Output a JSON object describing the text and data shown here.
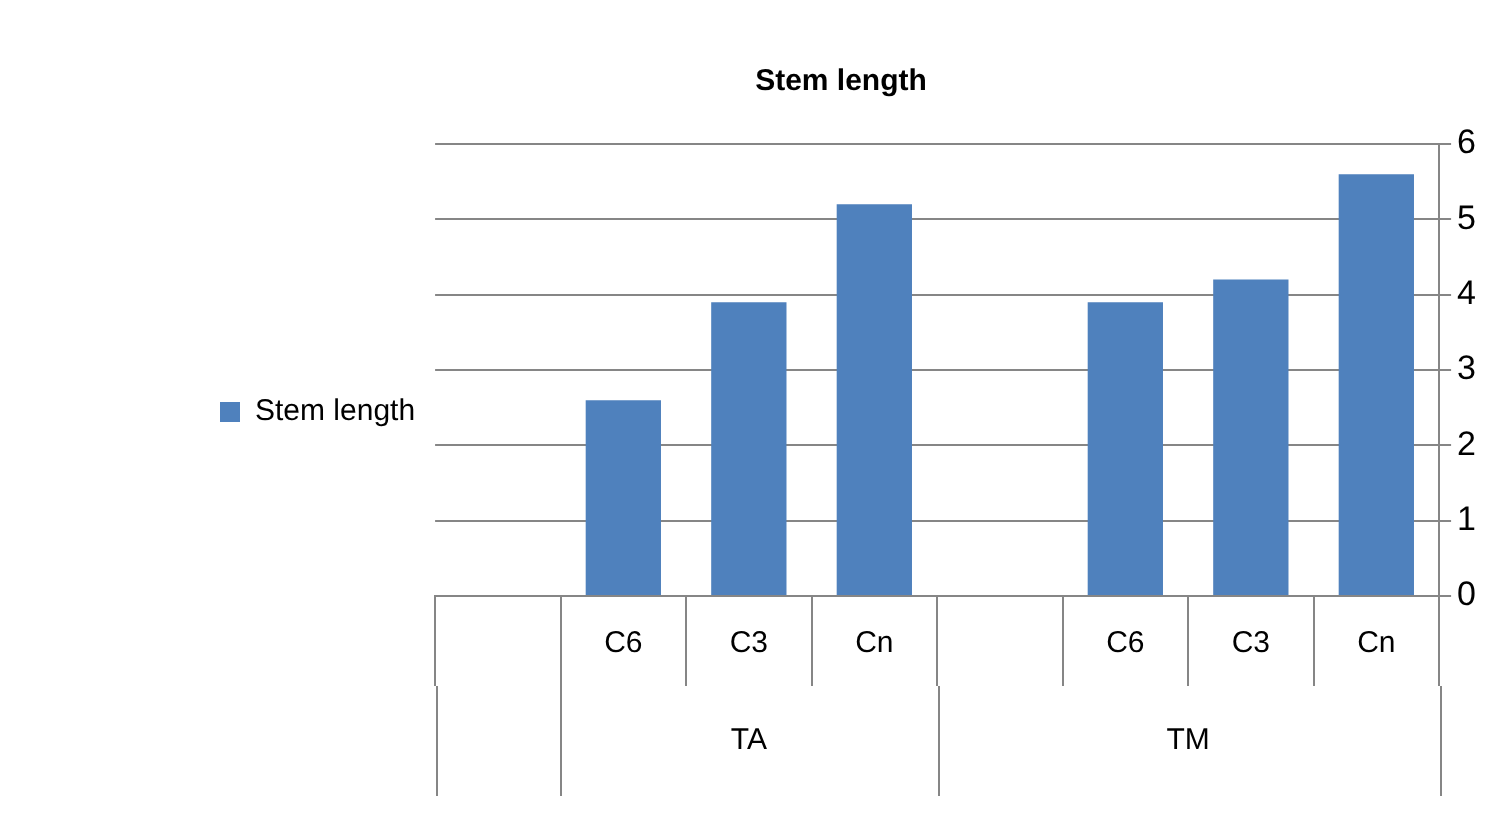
{
  "chart_data": {
    "type": "bar",
    "title": "Stem length",
    "categories": [
      null,
      "C6",
      "C3",
      "Cn",
      null,
      "C6",
      "C3",
      "Cn"
    ],
    "series": [
      {
        "name": "Stem length",
        "color": "#4f81bd",
        "values": [
          null,
          2.6,
          3.9,
          5.2,
          null,
          3.9,
          4.2,
          5.6
        ]
      }
    ],
    "ylim": [
      0,
      6
    ],
    "yticks": [
      0,
      1,
      2,
      3,
      4,
      5,
      6
    ],
    "grid": "y",
    "legend": "left",
    "annotations": [
      "TA",
      "TM"
    ]
  }
}
